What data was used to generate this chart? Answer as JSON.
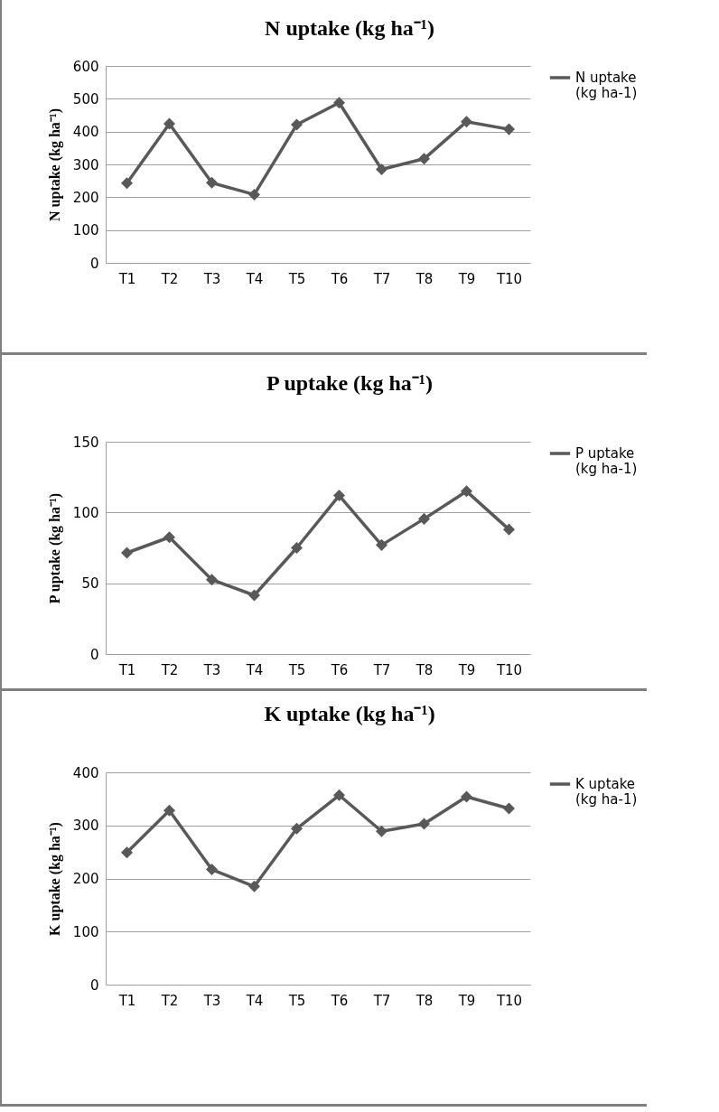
{
  "chart_data": [
    {
      "type": "line",
      "title": "N uptake (kg ha⁻¹)",
      "ylabel": "N uptake (kg ha⁻¹)",
      "categories": [
        "T1",
        "T2",
        "T3",
        "T4",
        "T5",
        "T6",
        "T7",
        "T8",
        "T9",
        "T10"
      ],
      "series": [
        {
          "name": "N uptake (kg ha-1)",
          "color": "#595959",
          "values": [
            243,
            424,
            244,
            208,
            421,
            488,
            285,
            317,
            430,
            407
          ]
        }
      ],
      "ylim": [
        0,
        600
      ],
      "yticks": [
        0,
        100,
        200,
        300,
        400,
        500,
        600
      ],
      "grid": "y",
      "legend": "right",
      "marker": "diamond",
      "line_style": "solid"
    },
    {
      "type": "line",
      "title": "P uptake (kg ha⁻¹)",
      "ylabel": "P uptake (kg ha⁻¹)",
      "categories": [
        "T1",
        "T2",
        "T3",
        "T4",
        "T5",
        "T6",
        "T7",
        "T8",
        "T9",
        "T10"
      ],
      "series": [
        {
          "name": "P uptake (kg ha-1)",
          "color": "#595959",
          "values": [
            71.5,
            82.5,
            52.5,
            41.5,
            75,
            112,
            77,
            95.5,
            115,
            88
          ]
        }
      ],
      "ylim": [
        0,
        150
      ],
      "yticks": [
        0,
        50,
        100,
        150
      ],
      "grid": "y",
      "legend": "right",
      "marker": "diamond",
      "line_style": "solid"
    },
    {
      "type": "line",
      "title": "K uptake (kg ha⁻¹)",
      "ylabel": "K uptake (kg ha⁻¹)",
      "categories": [
        "T1",
        "T2",
        "T3",
        "T4",
        "T5",
        "T6",
        "T7",
        "T8",
        "T9",
        "T10"
      ],
      "series": [
        {
          "name": "K uptake (kg ha-1)",
          "color": "#595959",
          "values": [
            249,
            328,
            217,
            185,
            294,
            357,
            289,
            303,
            354,
            332
          ]
        }
      ],
      "ylim": [
        0,
        400
      ],
      "yticks": [
        0,
        100,
        200,
        300,
        400
      ],
      "grid": "y",
      "legend": "right",
      "marker": "diamond",
      "line_style": "solid"
    }
  ]
}
